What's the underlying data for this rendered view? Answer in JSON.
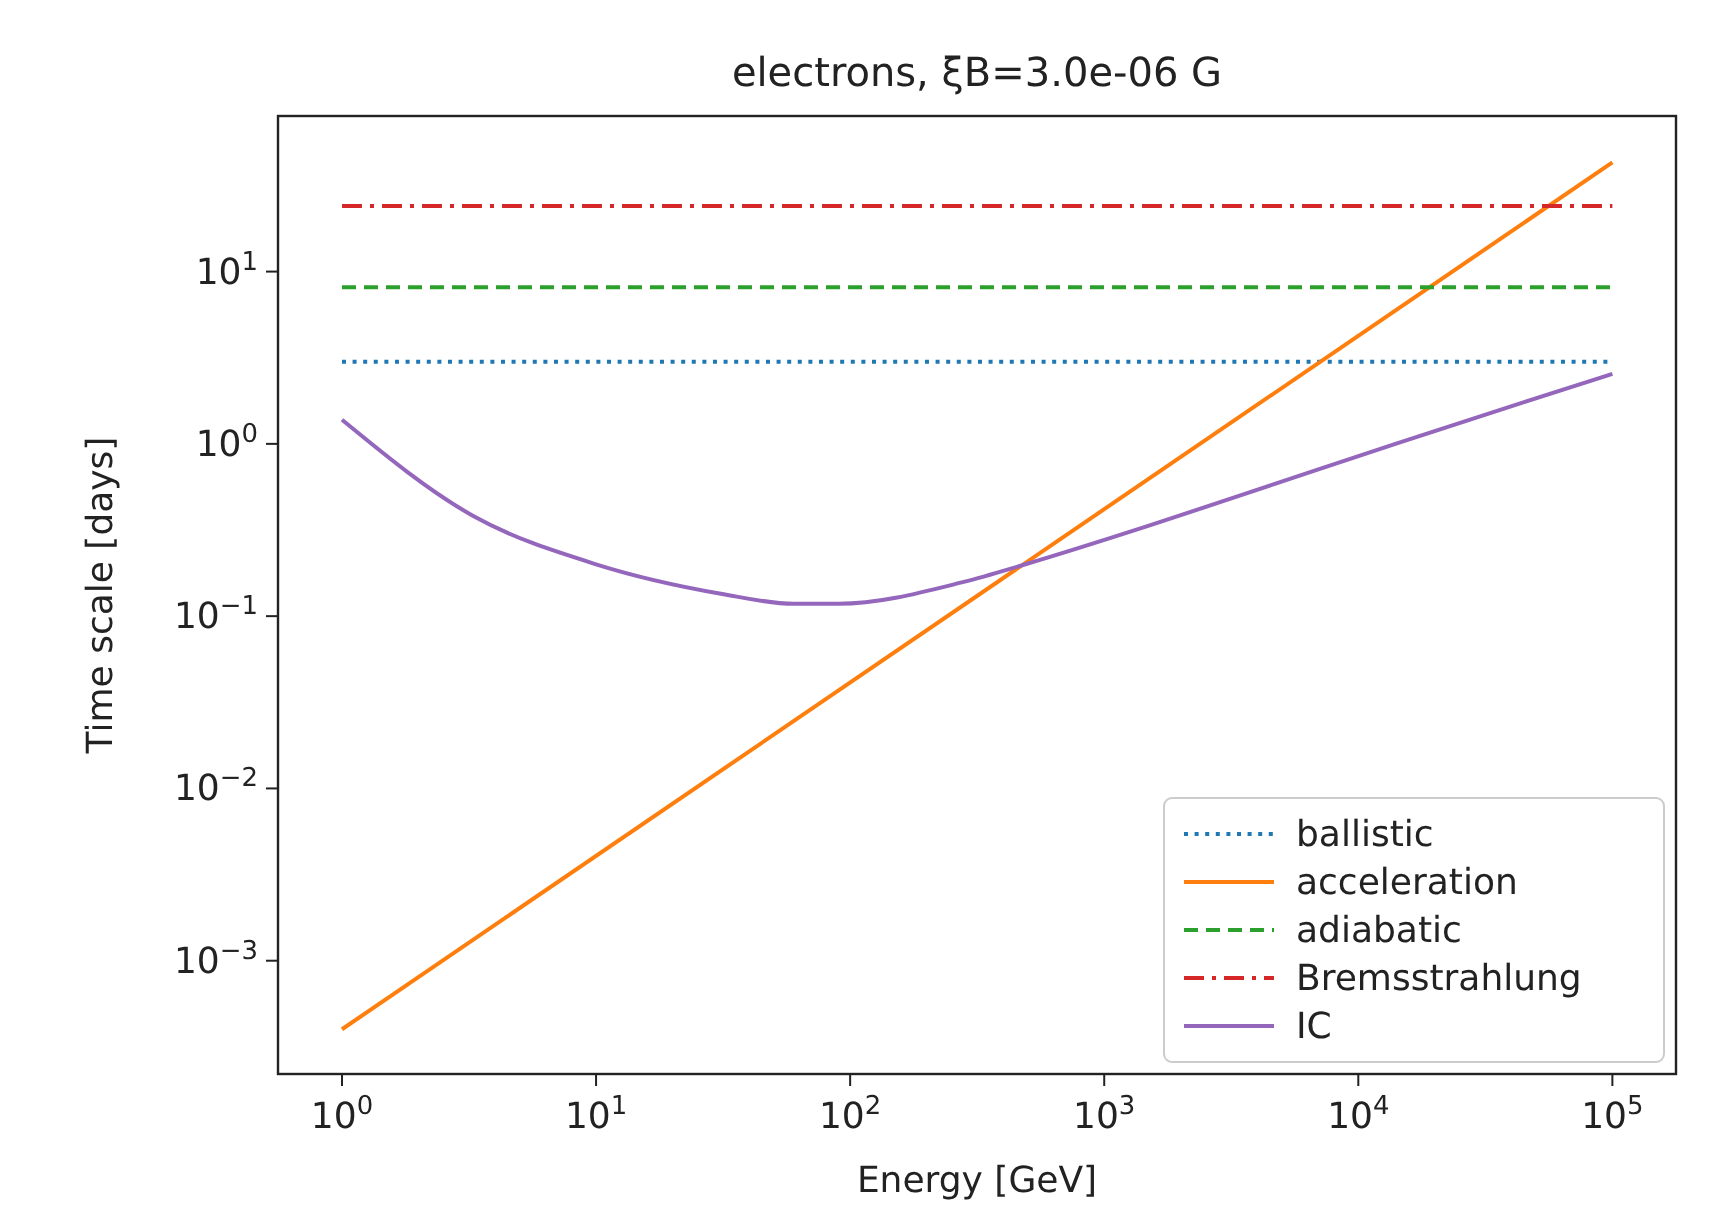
{
  "chart_data": {
    "type": "line",
    "title": "electrons, ξB=3.0e-06 G",
    "xlabel": "Energy [GeV]",
    "ylabel": "Time scale [days]",
    "log": "xy",
    "grid": false,
    "legend": "bottom right",
    "xlim": [
      0.56,
      178000
    ],
    "ylim": [
      0.00022,
      80
    ],
    "xticks": [
      {
        "value": 1,
        "label": "10$^{0}$"
      },
      {
        "value": 10,
        "label": "10$^{1}$"
      },
      {
        "value": 100,
        "label": "10$^{2}$"
      },
      {
        "value": 1000,
        "label": "10$^{3}$"
      },
      {
        "value": 10000,
        "label": "10$^{4}$"
      },
      {
        "value": 100000,
        "label": "10$^{5}$"
      }
    ],
    "yticks": [
      {
        "value": 0.001,
        "label": "10$^{−3}$"
      },
      {
        "value": 0.01,
        "label": "10$^{−2}$"
      },
      {
        "value": 0.1,
        "label": "10$^{−1}$"
      },
      {
        "value": 1,
        "label": "10$^{0}$"
      },
      {
        "value": 10,
        "label": "10$^{1}$"
      }
    ],
    "series": [
      {
        "name": "ballistic",
        "color": "#1f77b4",
        "line_style": "dotted",
        "x": [
          1,
          100000
        ],
        "values": [
          3,
          3
        ]
      },
      {
        "name": "acceleration",
        "color": "#ff7f0e",
        "line_style": "solid",
        "x": [
          1,
          100000
        ],
        "values": [
          0.0004,
          43
        ]
      },
      {
        "name": "adiabatic",
        "color": "#2ca02c",
        "line_style": "dashed",
        "x": [
          1,
          100000
        ],
        "values": [
          8.1,
          8.1
        ]
      },
      {
        "name": "Bremsstrahlung",
        "color": "#d62728",
        "line_style": "dashdot",
        "x": [
          1,
          100000
        ],
        "values": [
          24,
          24
        ]
      },
      {
        "name": "IC",
        "color": "#9467bd",
        "line_style": "solid",
        "x": [
          1,
          3.3,
          10,
          31,
          60,
          90,
          280,
          490,
          1500,
          4600,
          14000,
          44000,
          100000
        ],
        "values": [
          1.38,
          0.38,
          0.2,
          0.135,
          0.118,
          0.118,
          0.158,
          0.2,
          0.335,
          0.58,
          1.0,
          1.73,
          2.55
        ]
      }
    ]
  }
}
